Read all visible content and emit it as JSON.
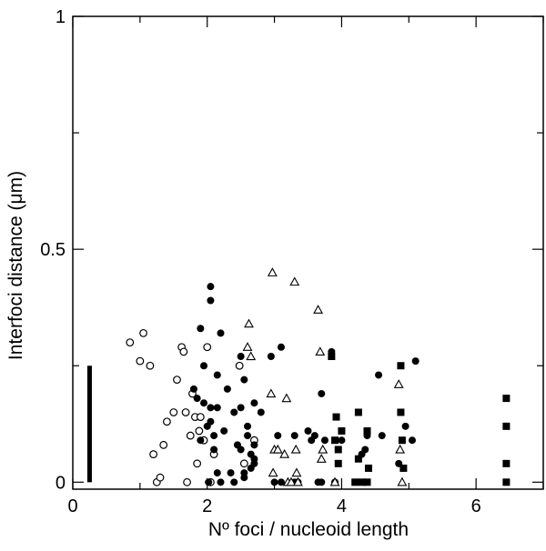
{
  "chart_data": {
    "type": "scatter",
    "title": "",
    "xlabel": "Nº foci / nucleoid length",
    "ylabel": "Interfoci distance (μm)",
    "xlim": [
      0,
      7
    ],
    "ylim": [
      -0.015,
      1.0
    ],
    "grid": false,
    "legend": "none",
    "x_ticks": [
      {
        "value": 0,
        "label": "0"
      },
      {
        "value": 2,
        "label": "2"
      },
      {
        "value": 4,
        "label": "4"
      },
      {
        "value": 6,
        "label": "6"
      }
    ],
    "x_minor_ticks": [
      1,
      3,
      5,
      7
    ],
    "y_ticks": [
      {
        "value": 0,
        "label": "0"
      },
      {
        "value": 0.5,
        "label": "0.5"
      },
      {
        "value": 1,
        "label": "1"
      }
    ],
    "y_minor_ticks": [
      0.25,
      0.75
    ],
    "scale_bar": {
      "x": 0.25,
      "y_from": 0.0,
      "y_to": 0.25
    },
    "series": [
      {
        "marker": "open-circle",
        "points": [
          [
            0.85,
            0.3
          ],
          [
            1.0,
            0.26
          ],
          [
            1.05,
            0.32
          ],
          [
            1.15,
            0.25
          ],
          [
            1.2,
            0.06
          ],
          [
            1.25,
            0.0
          ],
          [
            1.3,
            0.01
          ],
          [
            1.35,
            0.08
          ],
          [
            1.4,
            0.13
          ],
          [
            1.5,
            0.15
          ],
          [
            1.55,
            0.22
          ],
          [
            1.62,
            0.29
          ],
          [
            1.65,
            0.28
          ],
          [
            1.68,
            0.15
          ],
          [
            1.7,
            0.0
          ],
          [
            1.75,
            0.1
          ],
          [
            1.78,
            0.19
          ],
          [
            1.82,
            0.14
          ],
          [
            1.85,
            0.04
          ],
          [
            1.88,
            0.11
          ],
          [
            1.9,
            0.14
          ],
          [
            1.95,
            0.09
          ],
          [
            2.0,
            0.29
          ],
          [
            2.05,
            0.0
          ],
          [
            2.1,
            0.06
          ],
          [
            2.48,
            0.25
          ],
          [
            2.55,
            0.04
          ],
          [
            2.7,
            0.09
          ]
        ]
      },
      {
        "marker": "filled-circle",
        "points": [
          [
            1.8,
            0.2
          ],
          [
            1.85,
            0.18
          ],
          [
            1.9,
            0.09
          ],
          [
            1.95,
            0.25
          ],
          [
            1.9,
            0.33
          ],
          [
            1.95,
            0.17
          ],
          [
            2.0,
            0.12
          ],
          [
            2.02,
            0.0
          ],
          [
            2.05,
            0.42
          ],
          [
            2.05,
            0.39
          ],
          [
            2.05,
            0.16
          ],
          [
            2.05,
            0.13
          ],
          [
            2.1,
            0.1
          ],
          [
            2.1,
            0.07
          ],
          [
            2.15,
            0.23
          ],
          [
            2.15,
            0.16
          ],
          [
            2.15,
            0.02
          ],
          [
            2.2,
            0.32
          ],
          [
            2.2,
            0.0
          ],
          [
            2.25,
            0.11
          ],
          [
            2.3,
            0.2
          ],
          [
            2.35,
            0.02
          ],
          [
            2.4,
            0.0
          ],
          [
            2.4,
            0.15
          ],
          [
            2.45,
            0.08
          ],
          [
            2.5,
            0.27
          ],
          [
            2.5,
            0.16
          ],
          [
            2.5,
            0.07
          ],
          [
            2.55,
            0.22
          ],
          [
            2.55,
            0.02
          ],
          [
            2.55,
            0.01
          ],
          [
            2.6,
            0.12
          ],
          [
            2.6,
            0.1
          ],
          [
            2.65,
            0.06
          ],
          [
            2.65,
            0.03
          ],
          [
            2.7,
            0.08
          ],
          [
            2.7,
            0.04
          ],
          [
            2.7,
            0.05
          ],
          [
            2.7,
            0.17
          ],
          [
            2.8,
            0.15
          ],
          [
            2.95,
            0.27
          ],
          [
            3.0,
            0.0
          ],
          [
            3.05,
            0.1
          ],
          [
            3.1,
            0.29
          ],
          [
            3.1,
            0.0
          ],
          [
            3.3,
            0.0
          ],
          [
            3.3,
            0.1
          ],
          [
            3.35,
            0.0
          ],
          [
            3.5,
            0.11
          ],
          [
            3.55,
            0.09
          ],
          [
            3.6,
            0.1
          ],
          [
            3.65,
            0.0
          ],
          [
            3.7,
            0.0
          ],
          [
            3.7,
            0.19
          ],
          [
            3.75,
            0.09
          ],
          [
            3.85,
            0.28
          ],
          [
            3.9,
            0.0
          ],
          [
            4.0,
            0.09
          ],
          [
            4.3,
            0.06
          ],
          [
            4.35,
            0.07
          ],
          [
            4.38,
            0.1
          ],
          [
            4.55,
            0.23
          ],
          [
            4.6,
            0.1
          ],
          [
            4.85,
            0.04
          ],
          [
            4.95,
            0.12
          ],
          [
            5.05,
            0.09
          ],
          [
            5.1,
            0.26
          ]
        ]
      },
      {
        "marker": "open-triangle",
        "points": [
          [
            2.6,
            0.29
          ],
          [
            2.62,
            0.34
          ],
          [
            2.65,
            0.27
          ],
          [
            2.95,
            0.19
          ],
          [
            2.97,
            0.45
          ],
          [
            2.98,
            0.02
          ],
          [
            3.0,
            0.07
          ],
          [
            3.05,
            0.07
          ],
          [
            3.15,
            0.06
          ],
          [
            3.18,
            0.18
          ],
          [
            3.2,
            0.0
          ],
          [
            3.25,
            0.0
          ],
          [
            3.3,
            0.43
          ],
          [
            3.32,
            0.07
          ],
          [
            3.33,
            0.02
          ],
          [
            3.35,
            0.0
          ],
          [
            3.65,
            0.37
          ],
          [
            3.68,
            0.28
          ],
          [
            3.7,
            0.05
          ],
          [
            3.72,
            0.07
          ],
          [
            3.9,
            0.0
          ],
          [
            4.85,
            0.21
          ],
          [
            4.87,
            0.07
          ],
          [
            4.9,
            0.0
          ]
        ]
      },
      {
        "marker": "filled-square",
        "points": [
          [
            3.85,
            0.27
          ],
          [
            3.9,
            0.09
          ],
          [
            3.92,
            0.14
          ],
          [
            3.95,
            0.04
          ],
          [
            3.95,
            0.07
          ],
          [
            4.0,
            0.11
          ],
          [
            4.2,
            0.0
          ],
          [
            4.25,
            0.15
          ],
          [
            4.25,
            0.05
          ],
          [
            4.3,
            0.0
          ],
          [
            4.38,
            0.0
          ],
          [
            4.38,
            0.11
          ],
          [
            4.4,
            0.03
          ],
          [
            4.88,
            0.25
          ],
          [
            4.88,
            0.15
          ],
          [
            4.9,
            0.09
          ],
          [
            4.92,
            0.03
          ],
          [
            6.45,
            0.18
          ],
          [
            6.45,
            0.12
          ],
          [
            6.45,
            0.04
          ],
          [
            6.45,
            0.0
          ]
        ]
      }
    ]
  }
}
